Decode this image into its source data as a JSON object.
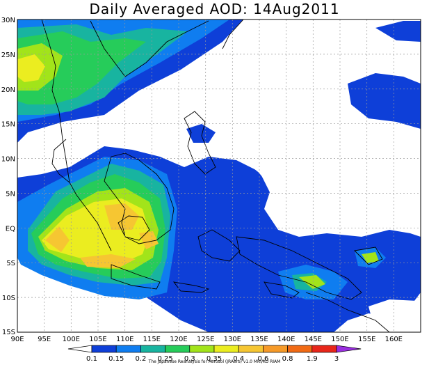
{
  "title": "Daily Averaged AOD: 14Aug2011",
  "lat_labels": [
    "30N",
    "25N",
    "20N",
    "15N",
    "10N",
    "5N",
    "EQ",
    "5S",
    "10S",
    "15S"
  ],
  "lon_labels": [
    "90E",
    "95E",
    "100E",
    "105E",
    "110E",
    "115E",
    "120E",
    "125E",
    "130E",
    "135E",
    "140E",
    "145E",
    "150E",
    "155E",
    "160E"
  ],
  "colorbar": {
    "levels": [
      "0.1",
      "0.15",
      "0.2",
      "0.25",
      "0.3",
      "0.35",
      "0.4",
      "0.6",
      "0.8",
      "1.9",
      "3"
    ],
    "colors": [
      "#0e3fd8",
      "#0f7df0",
      "#18b4a0",
      "#26cc5a",
      "#a2e41a",
      "#ebed20",
      "#f6c632",
      "#f69a28",
      "#f16a14",
      "#e8261a",
      "#9a2ee0"
    ]
  },
  "credit": "The Japanese Reanalysis for Aerosol (JRAero) v1.0 MRI/KU RIAM"
}
